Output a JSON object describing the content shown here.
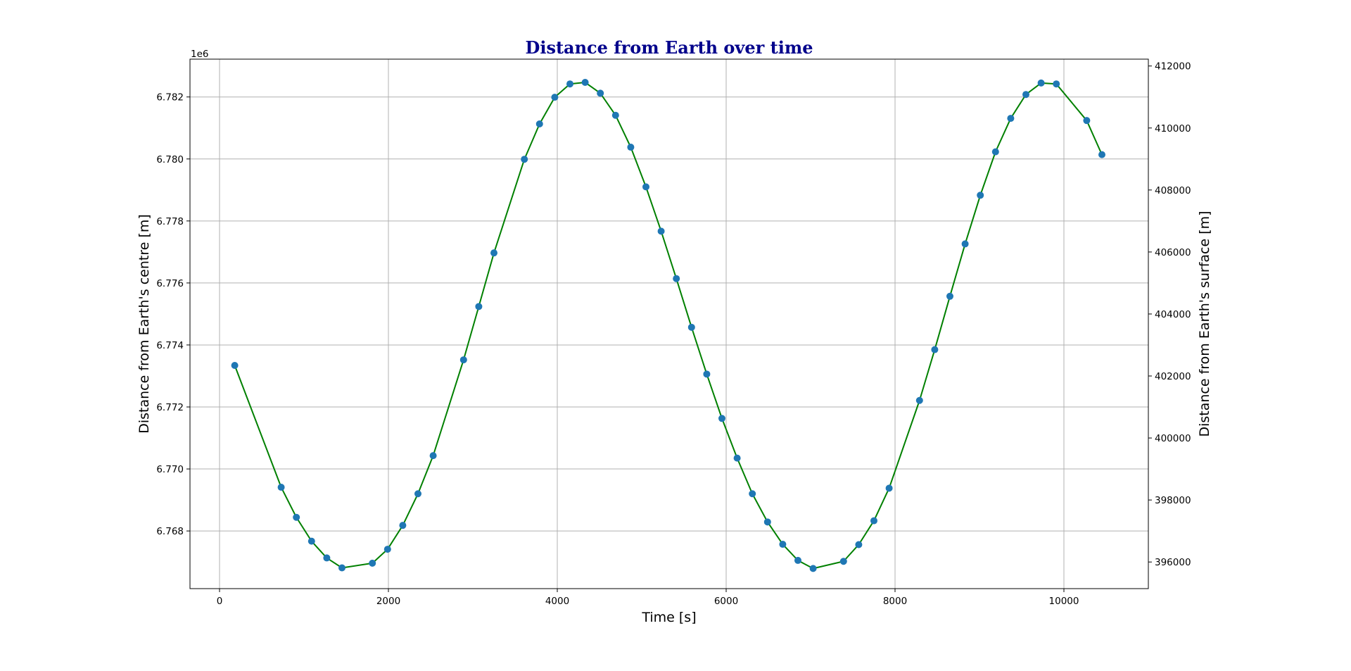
{
  "chart_data": {
    "type": "line",
    "title": "Distance from Earth over time",
    "xlabel": "Time [s]",
    "ylabel": "Distance from Earth's centre [m]",
    "ylabel_right": "Distance from Earth's surface [m]",
    "y_offset_label": "1e6",
    "xlim": [
      -350,
      11000
    ],
    "ylim": [
      6.76614,
      6.78322
    ],
    "ylim_right": [
      395141,
      412221
    ],
    "x_ticks": [
      0,
      2000,
      4000,
      6000,
      8000,
      10000
    ],
    "x_tick_labels": [
      "0",
      "2000",
      "4000",
      "6000",
      "8000",
      "10000"
    ],
    "y_ticks": [
      6.768,
      6.77,
      6.772,
      6.774,
      6.776,
      6.778,
      6.78,
      6.782
    ],
    "y_tick_labels": [
      "6.768",
      "6.770",
      "6.772",
      "6.774",
      "6.776",
      "6.778",
      "6.780",
      "6.782"
    ],
    "y_ticks_right": [
      396000,
      398000,
      400000,
      402000,
      404000,
      406000,
      408000,
      410000,
      412000
    ],
    "y_tick_labels_right": [
      "396000",
      "398000",
      "400000",
      "402000",
      "404000",
      "406000",
      "408000",
      "410000",
      "412000"
    ],
    "grid": true,
    "line_color": "#008000",
    "marker_color": "#1f77b4",
    "title_color": "#00008b",
    "series": [
      {
        "x": [
          180,
          730,
          910,
          1090,
          1270,
          1450,
          1810,
          1990,
          2170,
          2350,
          2530,
          2890,
          3070,
          3250,
          3610,
          3790,
          3970,
          4150,
          4330,
          4510,
          4690,
          4870,
          5050,
          5230,
          5410,
          5590,
          5770,
          5950,
          6130,
          6310,
          6490,
          6670,
          6850,
          7030,
          7390,
          7570,
          7750,
          7930,
          8290,
          8470,
          8650,
          8830,
          9010,
          9190,
          9370,
          9550,
          9730,
          9910,
          10270,
          10450
        ],
        "y": [
          6.77334,
          6.76941,
          6.76844,
          6.76767,
          6.76713,
          6.76681,
          6.76696,
          6.76741,
          6.76818,
          6.7692,
          6.77043,
          6.77352,
          6.77524,
          6.77697,
          6.77999,
          6.78113,
          6.78199,
          6.78242,
          6.78247,
          6.78212,
          6.78141,
          6.78038,
          6.7791,
          6.77767,
          6.77614,
          6.77457,
          6.77306,
          6.77163,
          6.77035,
          6.7692,
          6.76829,
          6.76757,
          6.76705,
          6.76679,
          6.76702,
          6.76756,
          6.76833,
          6.76938,
          6.77221,
          6.77385,
          6.77557,
          6.77726,
          6.77883,
          6.78023,
          6.78131,
          6.78208,
          6.78245,
          6.78242,
          6.78124,
          6.78014
        ]
      }
    ]
  }
}
